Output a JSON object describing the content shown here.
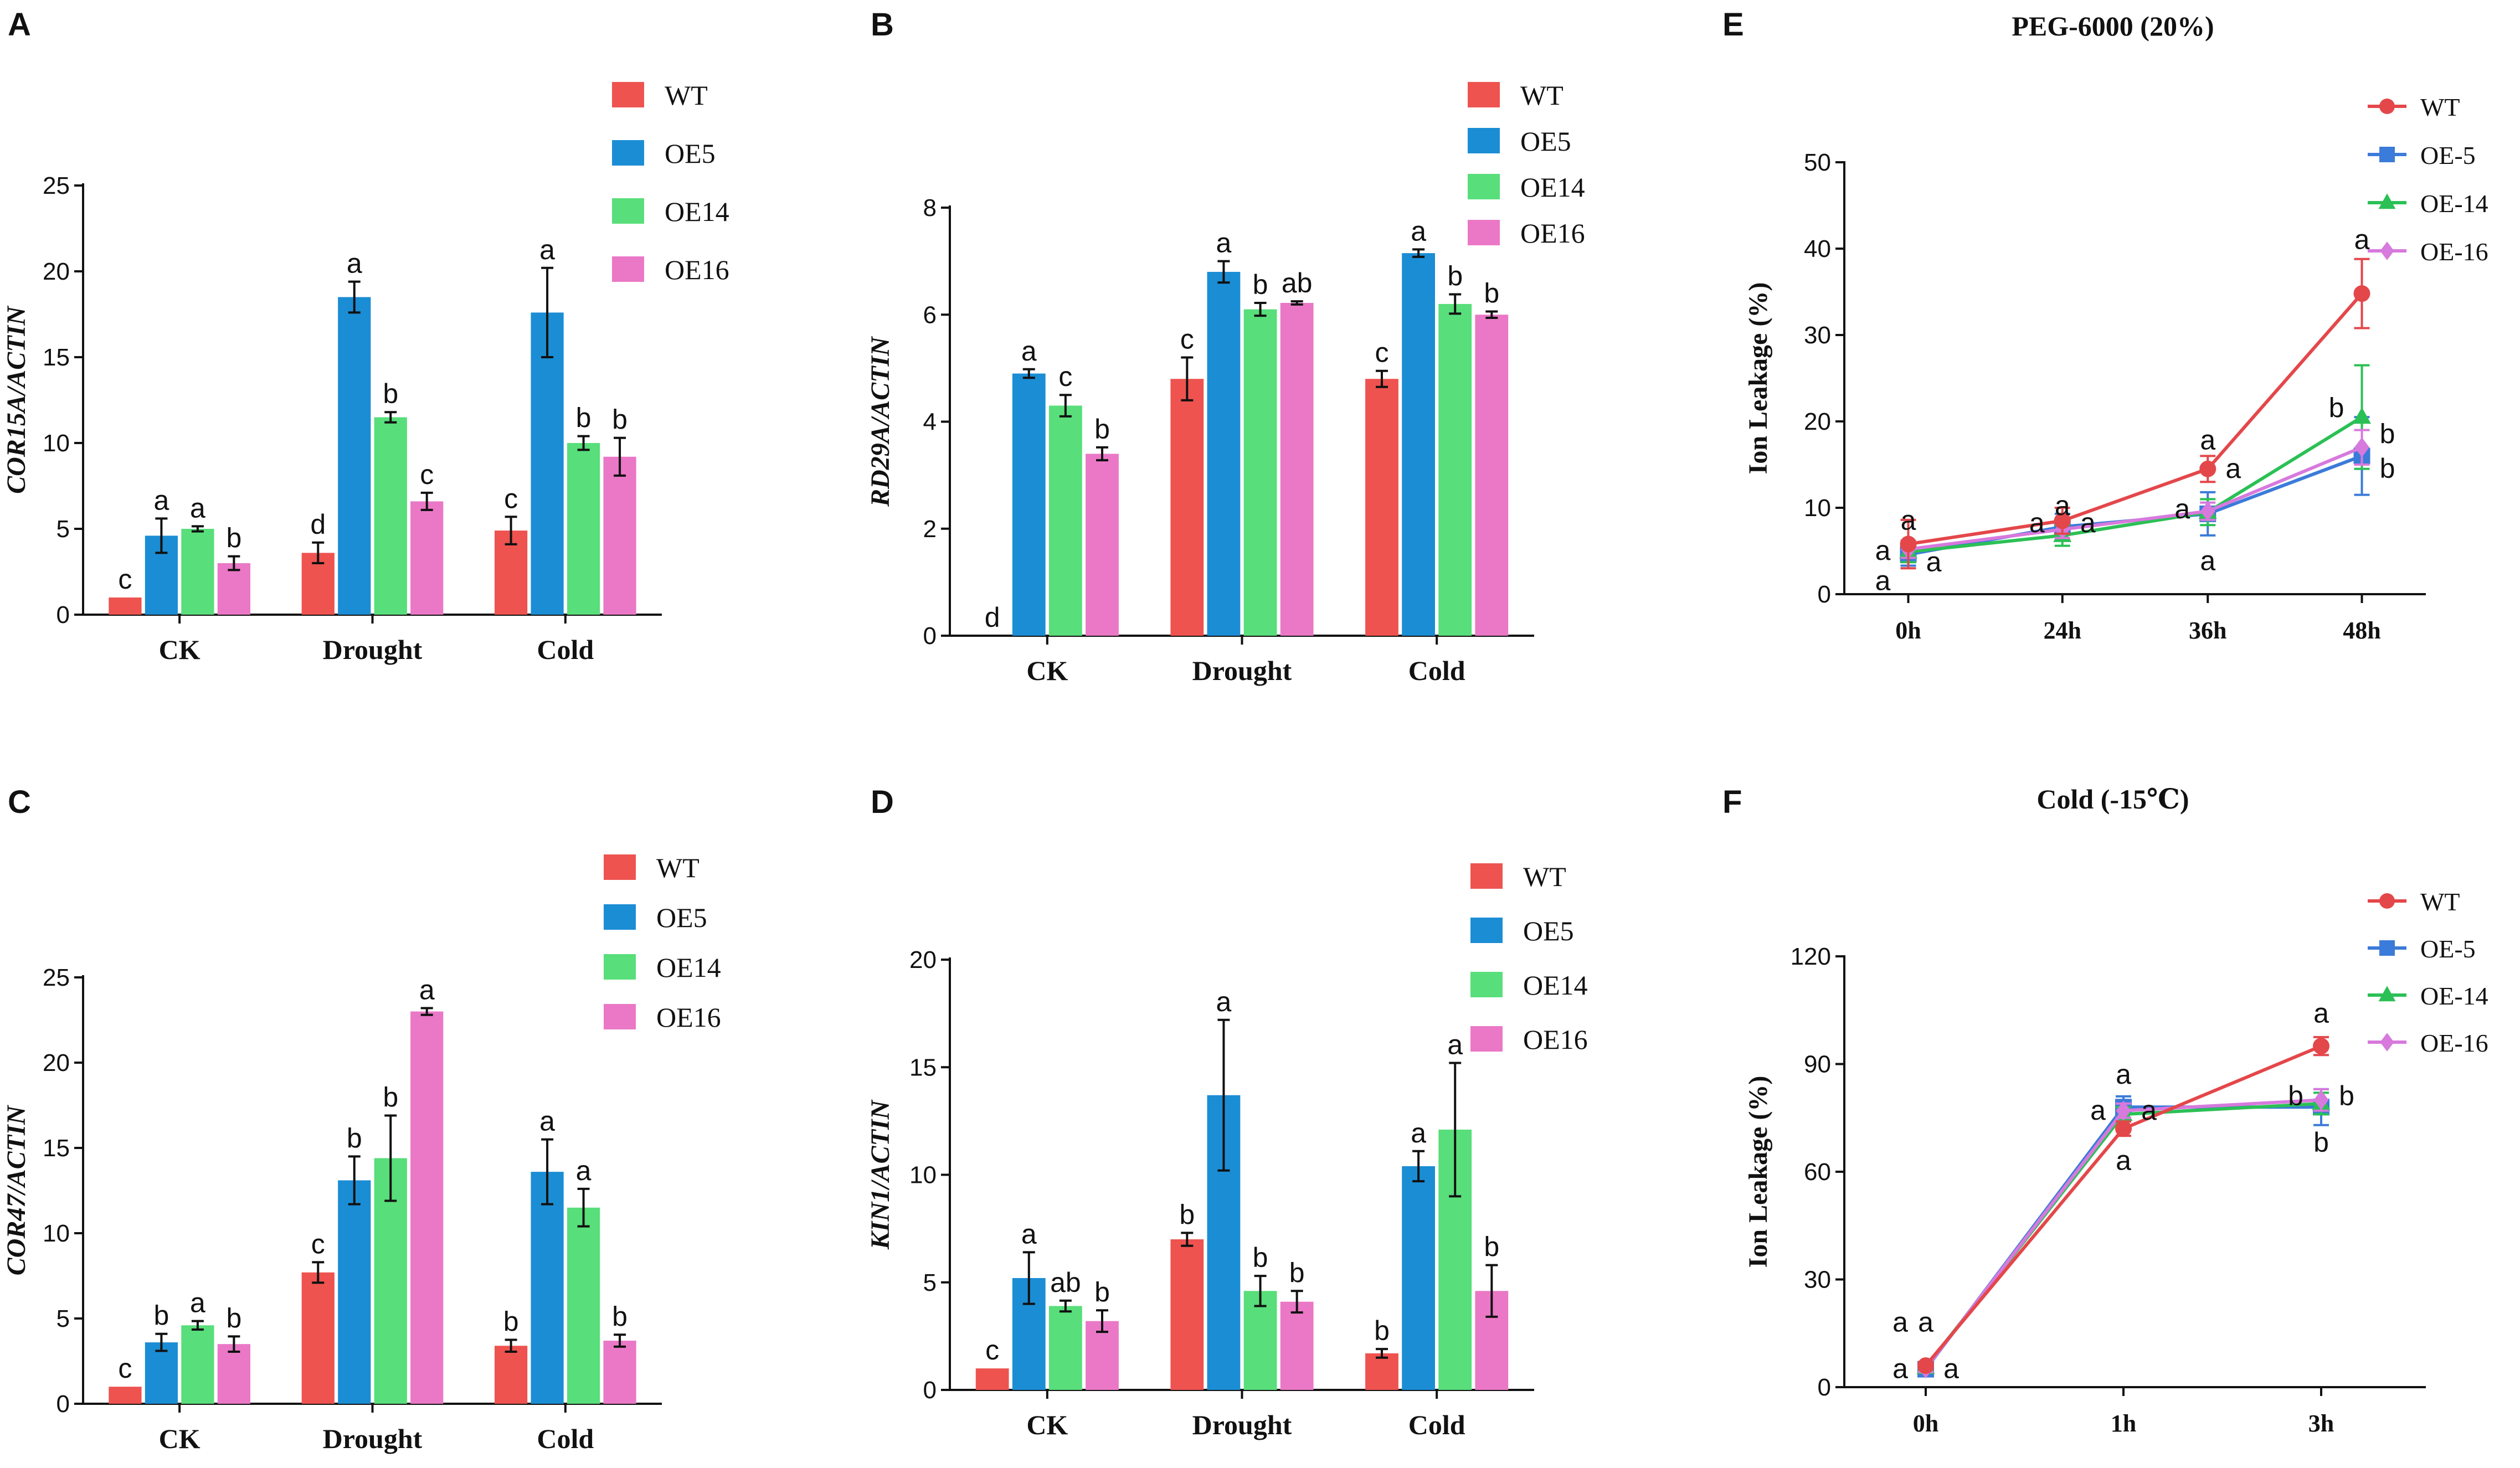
{
  "colors": {
    "WT": "#ee5350",
    "OE5": "#1b8dd4",
    "OE14": "#58de7a",
    "OE16": "#ea78c6",
    "axis": "#111111"
  },
  "line_colors": {
    "WT": "#e4474a",
    "OE-5": "#3b7bd9",
    "OE-14": "#2bc055",
    "OE-16": "#d779dd"
  },
  "chart_data": [
    {
      "id": "A",
      "type": "bar",
      "panel_label": "A",
      "title": "",
      "ylabel": "COR15A/ACTIN",
      "xlabel": "",
      "categories": [
        "CK",
        "Drought",
        "Cold"
      ],
      "ylim": [
        0,
        25
      ],
      "yticks": [
        0,
        5,
        10,
        15,
        20,
        25
      ],
      "legend": [
        "WT",
        "OE5",
        "OE14",
        "OE16"
      ],
      "legend_position": "top-right",
      "series": [
        {
          "name": "WT",
          "values": [
            1.0,
            3.6,
            4.9
          ],
          "errors": [
            0,
            0.6,
            0.8
          ],
          "letters": [
            "c",
            "d",
            "c"
          ]
        },
        {
          "name": "OE5",
          "values": [
            4.6,
            18.5,
            17.6
          ],
          "errors": [
            1.0,
            0.9,
            2.6
          ],
          "letters": [
            "a",
            "a",
            "a"
          ]
        },
        {
          "name": "OE14",
          "values": [
            5.0,
            11.5,
            10.0
          ],
          "errors": [
            0.15,
            0.3,
            0.4
          ],
          "letters": [
            "a",
            "b",
            "b"
          ]
        },
        {
          "name": "OE16",
          "values": [
            3.0,
            6.6,
            9.2
          ],
          "errors": [
            0.4,
            0.5,
            1.1
          ],
          "letters": [
            "b",
            "c",
            "b"
          ]
        }
      ]
    },
    {
      "id": "B",
      "type": "bar",
      "panel_label": "B",
      "title": "",
      "ylabel": "RD29A/ACTIN",
      "xlabel": "",
      "categories": [
        "CK",
        "Drought",
        "Cold"
      ],
      "ylim": [
        0,
        8
      ],
      "yticks": [
        0,
        2,
        4,
        6,
        8
      ],
      "legend": [
        "WT",
        "OE5",
        "OE14",
        "OE16"
      ],
      "legend_position": "top-right",
      "series": [
        {
          "name": "WT",
          "values": [
            0.0,
            4.8,
            4.8
          ],
          "errors": [
            0,
            0.4,
            0.15
          ],
          "letters": [
            "d",
            "c",
            "c"
          ]
        },
        {
          "name": "OE5",
          "values": [
            4.9,
            6.8,
            7.15
          ],
          "errors": [
            0.08,
            0.2,
            0.07
          ],
          "letters": [
            "a",
            "a",
            "a"
          ]
        },
        {
          "name": "OE14",
          "values": [
            4.3,
            6.1,
            6.2
          ],
          "errors": [
            0.2,
            0.12,
            0.18
          ],
          "letters": [
            "c",
            "b",
            "b"
          ]
        },
        {
          "name": "OE16",
          "values": [
            3.4,
            6.22,
            6.0
          ],
          "errors": [
            0.12,
            0.03,
            0.06
          ],
          "letters": [
            "b",
            "ab",
            "b"
          ]
        }
      ]
    },
    {
      "id": "C",
      "type": "bar",
      "panel_label": "C",
      "title": "",
      "ylabel": "COR47/ACTIN",
      "xlabel": "",
      "categories": [
        "CK",
        "Drought",
        "Cold"
      ],
      "ylim": [
        0,
        25
      ],
      "yticks": [
        0,
        5,
        10,
        15,
        20,
        25
      ],
      "legend": [
        "WT",
        "OE5",
        "OE14",
        "OE16"
      ],
      "legend_position": "top-right",
      "series": [
        {
          "name": "WT",
          "values": [
            1.0,
            7.7,
            3.4
          ],
          "errors": [
            0,
            0.6,
            0.35
          ],
          "letters": [
            "c",
            "c",
            "b"
          ]
        },
        {
          "name": "OE5",
          "values": [
            3.6,
            13.1,
            13.6
          ],
          "errors": [
            0.5,
            1.4,
            1.9
          ],
          "letters": [
            "b",
            "b",
            "a"
          ]
        },
        {
          "name": "OE14",
          "values": [
            4.6,
            14.4,
            11.5
          ],
          "errors": [
            0.25,
            2.5,
            1.1
          ],
          "letters": [
            "a",
            "b",
            "a"
          ]
        },
        {
          "name": "OE16",
          "values": [
            3.5,
            23.0,
            3.7
          ],
          "errors": [
            0.45,
            0.2,
            0.35
          ],
          "letters": [
            "b",
            "a",
            "b"
          ]
        }
      ]
    },
    {
      "id": "D",
      "type": "bar",
      "panel_label": "D",
      "title": "",
      "ylabel": "KIN1/ACTIN",
      "xlabel": "",
      "categories": [
        "CK",
        "Drought",
        "Cold"
      ],
      "ylim": [
        0,
        20
      ],
      "yticks": [
        0,
        5,
        10,
        15,
        20
      ],
      "legend": [
        "WT",
        "OE5",
        "OE14",
        "OE16"
      ],
      "legend_position": "top-right",
      "series": [
        {
          "name": "WT",
          "values": [
            1.0,
            7.0,
            1.7
          ],
          "errors": [
            0,
            0.3,
            0.2
          ],
          "letters": [
            "c",
            "b",
            "b"
          ]
        },
        {
          "name": "OE5",
          "values": [
            5.2,
            13.7,
            10.4
          ],
          "errors": [
            1.2,
            3.5,
            0.7
          ],
          "letters": [
            "a",
            "a",
            "a"
          ]
        },
        {
          "name": "OE14",
          "values": [
            3.9,
            4.6,
            12.1
          ],
          "errors": [
            0.25,
            0.7,
            3.1
          ],
          "letters": [
            "ab",
            "b",
            "a"
          ]
        },
        {
          "name": "OE16",
          "values": [
            3.2,
            4.1,
            4.6
          ],
          "errors": [
            0.5,
            0.5,
            1.2
          ],
          "letters": [
            "b",
            "b",
            "b"
          ]
        }
      ]
    },
    {
      "id": "E",
      "type": "line",
      "panel_label": "E",
      "title": "PEG-6000 (20%)",
      "ylabel": "Ion Leakage (%)",
      "xlabel": "",
      "x": [
        "0h",
        "24h",
        "36h",
        "48h"
      ],
      "ylim": [
        0,
        50
      ],
      "yticks": [
        0,
        10,
        20,
        30,
        40,
        50
      ],
      "legend": [
        "WT",
        "OE-5",
        "OE-14",
        "OE-16"
      ],
      "legend_position": "top-right",
      "series": [
        {
          "name": "WT",
          "values": [
            5.8,
            8.5,
            14.5,
            34.8
          ],
          "errors": [
            2.8,
            1.5,
            1.5,
            4.0
          ],
          "marker": "circle"
        },
        {
          "name": "OE-5",
          "values": [
            4.6,
            7.8,
            9.3,
            16.0
          ],
          "errors": [
            1.3,
            1.5,
            2.5,
            4.5
          ],
          "marker": "square"
        },
        {
          "name": "OE-14",
          "values": [
            4.9,
            6.8,
            9.5,
            20.5
          ],
          "errors": [
            1.2,
            1.2,
            1.5,
            6.0
          ],
          "marker": "triangle"
        },
        {
          "name": "OE-16",
          "values": [
            5.2,
            7.5,
            9.6,
            17.0
          ],
          "errors": [
            1.0,
            1.0,
            1.0,
            2.0
          ],
          "marker": "diamond"
        }
      ],
      "letters": [
        {
          "x": "0h",
          "value": 8.5,
          "side": "center",
          "text": "a"
        },
        {
          "x": "0h",
          "value": 5.0,
          "side": "left",
          "text": "a"
        },
        {
          "x": "0h",
          "value": 1.5,
          "side": "left",
          "text": "a"
        },
        {
          "x": "0h",
          "value": 3.7,
          "side": "right",
          "text": "a"
        },
        {
          "x": "24h",
          "value": 10.2,
          "side": "center",
          "text": "a"
        },
        {
          "x": "24h",
          "value": 8.2,
          "side": "left",
          "text": "a"
        },
        {
          "x": "24h",
          "value": 8.2,
          "side": "right",
          "text": "a"
        },
        {
          "x": "36h",
          "value": 17.8,
          "side": "center",
          "text": "a"
        },
        {
          "x": "36h",
          "value": 14.5,
          "side": "right",
          "text": "a"
        },
        {
          "x": "36h",
          "value": 9.8,
          "side": "left",
          "text": "a"
        },
        {
          "x": "36h",
          "value": 3.8,
          "side": "center",
          "text": "a"
        },
        {
          "x": "48h",
          "value": 41.0,
          "side": "center",
          "text": "a"
        },
        {
          "x": "48h",
          "value": 21.5,
          "side": "left",
          "text": "b"
        },
        {
          "x": "48h",
          "value": 18.5,
          "side": "right",
          "text": "b"
        },
        {
          "x": "48h",
          "value": 14.5,
          "side": "right",
          "text": "b"
        }
      ]
    },
    {
      "id": "F",
      "type": "line",
      "panel_label": "F",
      "title": "Cold (-15℃)",
      "ylabel": "Ion Leakage (%)",
      "xlabel": "",
      "x": [
        "0h",
        "1h",
        "3h"
      ],
      "ylim": [
        0,
        120
      ],
      "yticks": [
        0,
        30,
        60,
        90,
        120
      ],
      "legend": [
        "WT",
        "OE-5",
        "OE-14",
        "OE-16"
      ],
      "legend_position": "top-right",
      "series": [
        {
          "name": "WT",
          "values": [
            6,
            72,
            95
          ],
          "errors": [
            1,
            2,
            2.5
          ],
          "marker": "circle"
        },
        {
          "name": "OE-5",
          "values": [
            5,
            78,
            78
          ],
          "errors": [
            1,
            3,
            5
          ],
          "marker": "square"
        },
        {
          "name": "OE-14",
          "values": [
            5.5,
            76,
            79
          ],
          "errors": [
            1,
            2,
            3
          ],
          "marker": "triangle"
        },
        {
          "name": "OE-16",
          "values": [
            5.2,
            77,
            80
          ],
          "errors": [
            1,
            2,
            3
          ],
          "marker": "diamond"
        }
      ],
      "letters": [
        {
          "x": "0h",
          "value": 18,
          "side": "left",
          "text": "a"
        },
        {
          "x": "0h",
          "value": 18,
          "side": "center",
          "text": "a"
        },
        {
          "x": "0h",
          "value": 5,
          "side": "left",
          "text": "a"
        },
        {
          "x": "0h",
          "value": 5,
          "side": "right",
          "text": "a"
        },
        {
          "x": "1h",
          "value": 87,
          "side": "center",
          "text": "a"
        },
        {
          "x": "1h",
          "value": 77,
          "side": "left",
          "text": "a"
        },
        {
          "x": "1h",
          "value": 77,
          "side": "right",
          "text": "a"
        },
        {
          "x": "1h",
          "value": 63,
          "side": "center",
          "text": "a"
        },
        {
          "x": "3h",
          "value": 104,
          "side": "center",
          "text": "a"
        },
        {
          "x": "3h",
          "value": 81,
          "side": "left",
          "text": "b"
        },
        {
          "x": "3h",
          "value": 81,
          "side": "right",
          "text": "b"
        },
        {
          "x": "3h",
          "value": 68,
          "side": "center",
          "text": "b"
        }
      ]
    }
  ]
}
